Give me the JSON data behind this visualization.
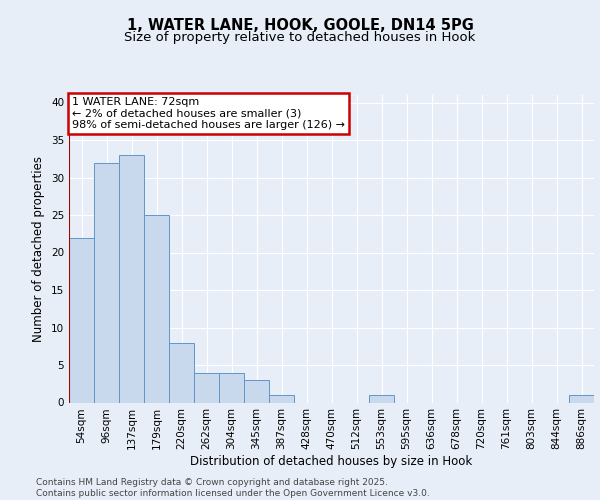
{
  "title_line1": "1, WATER LANE, HOOK, GOOLE, DN14 5PG",
  "title_line2": "Size of property relative to detached houses in Hook",
  "xlabel": "Distribution of detached houses by size in Hook",
  "ylabel": "Number of detached properties",
  "bin_labels": [
    "54sqm",
    "96sqm",
    "137sqm",
    "179sqm",
    "220sqm",
    "262sqm",
    "304sqm",
    "345sqm",
    "387sqm",
    "428sqm",
    "470sqm",
    "512sqm",
    "553sqm",
    "595sqm",
    "636sqm",
    "678sqm",
    "720sqm",
    "761sqm",
    "803sqm",
    "844sqm",
    "886sqm"
  ],
  "bar_values": [
    22,
    32,
    33,
    25,
    8,
    4,
    4,
    3,
    1,
    0,
    0,
    0,
    1,
    0,
    0,
    0,
    0,
    0,
    0,
    0,
    1
  ],
  "bar_color": "#c8d9ee",
  "bar_edge_color": "#6096c8",
  "annotation_line1": "1 WATER LANE: 72sqm",
  "annotation_line2": "← 2% of detached houses are smaller (3)",
  "annotation_line3": "98% of semi-detached houses are larger (126) →",
  "annotation_box_color": "#ffffff",
  "annotation_box_edge_color": "#cc0000",
  "vline_color": "#aa0000",
  "ylim": [
    0,
    41
  ],
  "yticks": [
    0,
    5,
    10,
    15,
    20,
    25,
    30,
    35,
    40
  ],
  "background_color": "#e8eef8",
  "grid_color": "#ffffff",
  "footer_text": "Contains HM Land Registry data © Crown copyright and database right 2025.\nContains public sector information licensed under the Open Government Licence v3.0.",
  "title_fontsize": 10.5,
  "subtitle_fontsize": 9.5,
  "axis_label_fontsize": 8.5,
  "tick_fontsize": 7.5,
  "annotation_fontsize": 8,
  "footer_fontsize": 6.5
}
